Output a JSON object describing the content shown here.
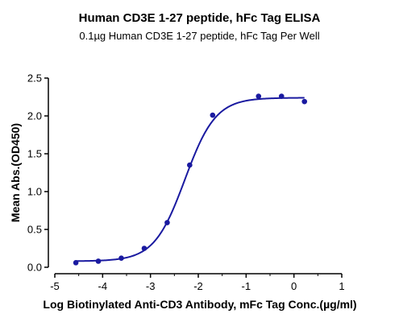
{
  "chart_data": {
    "type": "scatter",
    "title": "Human CD3E 1-27 peptide, hFc Tag ELISA",
    "subtitle": "0.1µg Human CD3E 1-27 peptide, hFc Tag Per Well",
    "xlabel": "Log Biotinylated  Anti-CD3 Antibody, mFc Tag Conc.(µg/ml)",
    "ylabel": "Mean Abs.(OD450)",
    "xlim": [
      -5,
      1
    ],
    "ylim": [
      0,
      2.5
    ],
    "xticks": [
      "-5",
      "-4",
      "-3",
      "-2",
      "-1",
      "0",
      "1"
    ],
    "yticks": [
      "0.0",
      "0.5",
      "1.0",
      "1.5",
      "2.0",
      "2.5"
    ],
    "grid": false,
    "legend": "none",
    "series": [
      {
        "x": [
          -4.56,
          -4.09,
          -3.61,
          -3.13,
          -2.65,
          -2.18,
          -1.7,
          -0.74,
          -0.26,
          0.22
        ],
        "y": [
          0.06,
          0.08,
          0.12,
          0.25,
          0.59,
          1.35,
          2.01,
          2.26,
          2.26,
          2.19
        ]
      }
    ],
    "fit": {
      "model": "4PL",
      "bottom": 0.08,
      "top": 2.24,
      "logEC50": -2.28,
      "hill": 1.35
    },
    "color": "#1a1aa0"
  }
}
